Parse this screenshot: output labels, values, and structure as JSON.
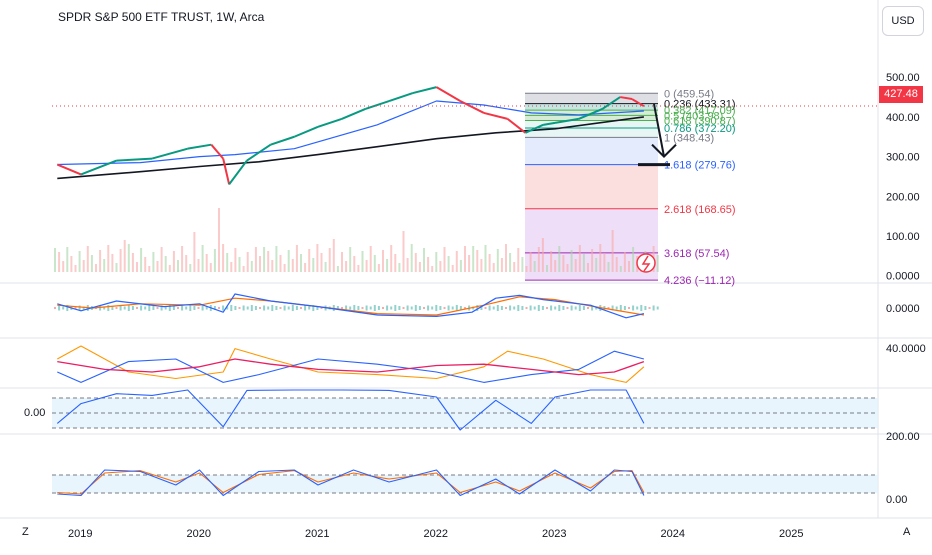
{
  "header": {
    "title": "SPDR S&P 500 ETF TRUST, 1W, Arca",
    "currency": "USD",
    "last_price": "427.48"
  },
  "colors": {
    "price_line": "#f23645",
    "ma_blue": "#2962ff",
    "ma_black": "#131722",
    "macd_blue": "#2962ff",
    "macd_orange": "#ff6d00",
    "oscillator_fill": "#e3f2fd",
    "fib_blue": "#2962ff",
    "fib_red": "#f23645",
    "fib_purple": "#9c27b0"
  },
  "corner": {
    "left": "Z",
    "right": "A",
    "rsi_level": "0.00"
  },
  "chart_data": [
    {
      "type": "line",
      "panel": "price",
      "x_ticks": [
        "2019",
        "2020",
        "2021",
        "2022",
        "2023",
        "2024",
        "2025"
      ],
      "y_ticks": [
        "500.00",
        "400.00",
        "300.00",
        "200.00",
        "100.00",
        "0.0000"
      ],
      "ylim": [
        0,
        520
      ],
      "series": [
        {
          "key": "close",
          "x": [
            2018.8,
            2019.0,
            2019.3,
            2019.6,
            2019.9,
            2020.1,
            2020.2,
            2020.25,
            2020.4,
            2020.6,
            2020.8,
            2021.0,
            2021.2,
            2021.4,
            2021.6,
            2021.8,
            2022.0,
            2022.2,
            2022.4,
            2022.6,
            2022.75,
            2022.9,
            2023.0,
            2023.2,
            2023.4,
            2023.55,
            2023.65,
            2023.75
          ],
          "y": [
            280,
            255,
            290,
            295,
            320,
            330,
            295,
            230,
            290,
            330,
            350,
            375,
            395,
            420,
            440,
            460,
            475,
            440,
            410,
            395,
            360,
            380,
            385,
            395,
            420,
            450,
            445,
            427
          ]
        },
        {
          "key": "ma_fast",
          "x": [
            2018.8,
            2019.5,
            2020.0,
            2020.3,
            2020.8,
            2021.5,
            2022.0,
            2022.4,
            2022.8,
            2023.2,
            2023.75
          ],
          "y": [
            280,
            285,
            300,
            305,
            320,
            380,
            440,
            430,
            410,
            405,
            415
          ]
        },
        {
          "key": "ma_slow",
          "x": [
            2018.8,
            2019.5,
            2020.0,
            2020.5,
            2021.0,
            2021.5,
            2022.0,
            2022.5,
            2023.0,
            2023.75
          ],
          "y": [
            245,
            262,
            275,
            287,
            305,
            325,
            345,
            360,
            370,
            400
          ]
        }
      ]
    },
    {
      "type": "fib_extension",
      "levels": [
        {
          "ratio": "0",
          "price": 459.54,
          "label": "0 (459.54)"
        },
        {
          "ratio": "0.236",
          "price": 433.31,
          "label": "0.236 (433.31)"
        },
        {
          "ratio": "0.382",
          "price": 417.09,
          "label": "0.382 (417.09)"
        },
        {
          "ratio": "0.5",
          "price": 403.98,
          "label": "0.5 (403.98)"
        },
        {
          "ratio": "0.618",
          "price": 390.87,
          "label": "0.618 (390.87)"
        },
        {
          "ratio": "0.786",
          "price": 372.2,
          "label": "0.786 (372.20)"
        },
        {
          "ratio": "1",
          "price": 348.43,
          "label": "1 (348.43)"
        },
        {
          "ratio": "1.618",
          "price": 279.76,
          "label": "1.618 (279.76)"
        },
        {
          "ratio": "2.618",
          "price": 168.65,
          "label": "2.618 (168.65)"
        },
        {
          "ratio": "3.618",
          "price": 57.54,
          "label": "3.618 (57.54)"
        },
        {
          "ratio": "4.236",
          "price": -11.12,
          "label": "4.236 (−11.12)"
        }
      ]
    },
    {
      "type": "line",
      "panel": "macd",
      "y_ticks": [
        "0.0000"
      ],
      "series": [
        {
          "key": "macd",
          "x": [
            2018.8,
            2019.0,
            2019.3,
            2019.7,
            2020.0,
            2020.2,
            2020.3,
            2020.6,
            2021.0,
            2021.5,
            2022.0,
            2022.3,
            2022.5,
            2022.7,
            2022.9,
            2023.3,
            2023.6,
            2023.75
          ],
          "y": [
            0.3,
            -0.2,
            0.5,
            0.1,
            0.3,
            -0.3,
            1.0,
            0.5,
            0.1,
            -0.5,
            -0.6,
            -0.3,
            0.7,
            0.9,
            0.6,
            0.2,
            -0.7,
            -0.4
          ]
        },
        {
          "key": "signal",
          "x": [
            2018.8,
            2019.1,
            2019.5,
            2020.0,
            2020.3,
            2020.6,
            2021.0,
            2021.5,
            2022.0,
            2022.4,
            2022.7,
            2023.0,
            2023.4,
            2023.75
          ],
          "y": [
            0.2,
            0.0,
            0.3,
            0.2,
            0.7,
            0.5,
            0.1,
            -0.4,
            -0.5,
            0.2,
            0.8,
            0.6,
            0.0,
            -0.5
          ]
        }
      ]
    },
    {
      "type": "line",
      "panel": "dmi",
      "y_ticks": [
        "40.0000"
      ],
      "series": [
        {
          "key": "dmi_red",
          "x": [
            2018.8,
            2019.2,
            2019.6,
            2020.0,
            2020.3,
            2020.6,
            2021.0,
            2021.5,
            2022.0,
            2022.4,
            2022.8,
            2023.2,
            2023.5,
            2023.75
          ],
          "y": [
            28,
            22,
            20,
            24,
            30,
            26,
            22,
            20,
            25,
            26,
            22,
            18,
            20,
            28
          ]
        },
        {
          "key": "dmi_orange",
          "x": [
            2018.8,
            2019.0,
            2019.4,
            2019.8,
            2020.2,
            2020.3,
            2020.6,
            2021.0,
            2021.5,
            2022.0,
            2022.4,
            2022.6,
            2022.9,
            2023.3,
            2023.6,
            2023.75
          ],
          "y": [
            30,
            40,
            20,
            15,
            20,
            38,
            30,
            20,
            18,
            15,
            24,
            36,
            30,
            18,
            12,
            24
          ]
        },
        {
          "key": "dmi_blue",
          "x": [
            2018.8,
            2019.0,
            2019.4,
            2019.8,
            2020.2,
            2020.5,
            2021.0,
            2021.5,
            2022.0,
            2022.4,
            2022.8,
            2023.2,
            2023.5,
            2023.75
          ],
          "y": [
            20,
            12,
            28,
            30,
            12,
            18,
            30,
            26,
            20,
            12,
            18,
            22,
            36,
            30
          ]
        }
      ]
    },
    {
      "type": "line",
      "panel": "rsi",
      "y_ticks": [
        "200.00"
      ],
      "series": [
        {
          "key": "rsi",
          "x": [
            2018.8,
            2019.0,
            2019.3,
            2019.6,
            2019.9,
            2020.2,
            2020.4,
            2020.8,
            2021.2,
            2021.6,
            2022.0,
            2022.2,
            2022.5,
            2022.8,
            2023.0,
            2023.3,
            2023.6,
            2023.75
          ],
          "y": [
            -20,
            40,
            70,
            65,
            90,
            -30,
            80,
            85,
            95,
            80,
            60,
            -40,
            50,
            -20,
            60,
            85,
            90,
            -20
          ]
        }
      ]
    },
    {
      "type": "line",
      "panel": "stochastic",
      "y_ticks": [
        "0.00"
      ],
      "series": [
        {
          "key": "k",
          "x": [
            2018.8,
            2019.0,
            2019.2,
            2019.5,
            2019.8,
            2020.0,
            2020.2,
            2020.5,
            2020.8,
            2021.0,
            2021.3,
            2021.6,
            2022.0,
            2022.2,
            2022.5,
            2022.7,
            2023.0,
            2023.3,
            2023.5,
            2023.65,
            2023.75
          ],
          "y": [
            10,
            5,
            90,
            85,
            40,
            90,
            5,
            85,
            90,
            40,
            90,
            50,
            90,
            5,
            60,
            10,
            90,
            20,
            90,
            85,
            5
          ]
        },
        {
          "key": "d",
          "x": [
            2018.8,
            2019.0,
            2019.2,
            2019.5,
            2019.8,
            2020.0,
            2020.2,
            2020.5,
            2020.8,
            2021.0,
            2021.3,
            2021.6,
            2022.0,
            2022.2,
            2022.5,
            2022.7,
            2023.0,
            2023.3,
            2023.5,
            2023.65,
            2023.75
          ],
          "y": [
            15,
            10,
            80,
            88,
            50,
            80,
            15,
            75,
            88,
            50,
            80,
            60,
            80,
            15,
            50,
            20,
            80,
            30,
            85,
            88,
            15
          ]
        }
      ]
    }
  ]
}
